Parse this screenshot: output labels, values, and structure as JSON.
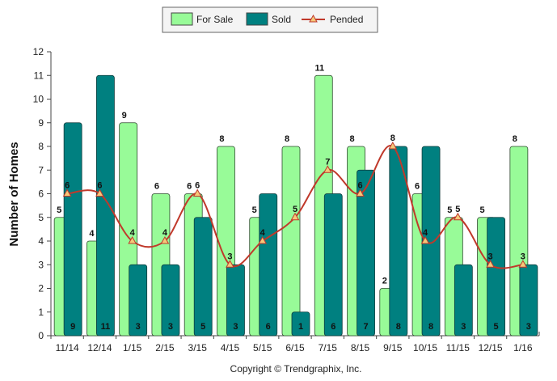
{
  "chart_data": {
    "type": "bar",
    "categories": [
      "11/14",
      "12/14",
      "1/15",
      "2/15",
      "3/15",
      "4/15",
      "5/15",
      "6/15",
      "7/15",
      "8/15",
      "9/15",
      "10/15",
      "11/15",
      "12/15",
      "1/16"
    ],
    "series": [
      {
        "name": "For Sale",
        "type": "bar",
        "color": "#98fb98",
        "values": [
          5,
          4,
          9,
          6,
          6,
          8,
          5,
          8,
          11,
          8,
          2,
          6,
          5,
          5,
          8
        ]
      },
      {
        "name": "Sold",
        "type": "bar",
        "color": "#008080",
        "values": [
          9,
          11,
          3,
          3,
          5,
          3,
          6,
          1,
          6,
          7,
          8,
          8,
          3,
          5,
          3
        ]
      },
      {
        "name": "Pended",
        "type": "line",
        "color": "#c0392b",
        "values": [
          6,
          6,
          4,
          4,
          6,
          3,
          4,
          5,
          7,
          6,
          8,
          4,
          5,
          3,
          3
        ]
      }
    ],
    "ylabel": "Number of Homes",
    "ylim": [
      0,
      12
    ],
    "yticks": [
      0,
      1,
      2,
      3,
      4,
      5,
      6,
      7,
      8,
      9,
      10,
      11,
      12
    ],
    "grid": false,
    "legend": "top-center",
    "copyright": "Copyright © Trendgraphix, Inc."
  }
}
